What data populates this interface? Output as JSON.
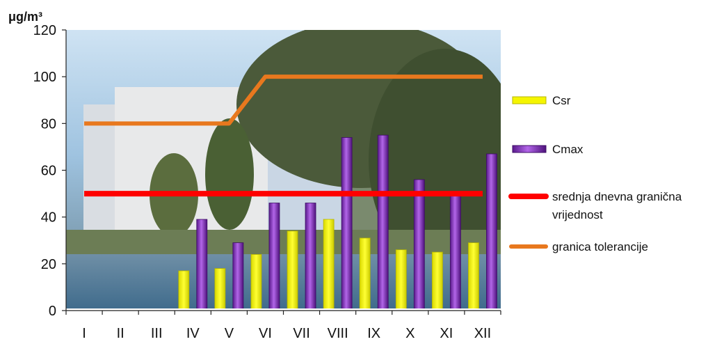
{
  "chart_data": {
    "type": "bar",
    "ylabel": "μg/m³",
    "ylim": [
      0,
      120
    ],
    "yticks": [
      0,
      20,
      40,
      60,
      80,
      100,
      120
    ],
    "grid": false,
    "legend_position": "right",
    "categories": [
      "I",
      "II",
      "III",
      "IV",
      "V",
      "VI",
      "VII",
      "VIII",
      "IX",
      "X",
      "XI",
      "XII"
    ],
    "series": [
      {
        "name": "Csr",
        "kind": "bar",
        "color": "#f5f500",
        "values": [
          null,
          null,
          null,
          17,
          18,
          24,
          34,
          39,
          31,
          26,
          25,
          29
        ]
      },
      {
        "name": "Cmax",
        "kind": "bar",
        "color": "#8a2fc2",
        "values": [
          null,
          null,
          null,
          39,
          29,
          46,
          46,
          74,
          75,
          56,
          50,
          67
        ]
      },
      {
        "name": "srednja dnevna granična vrijednost",
        "kind": "line",
        "color": "#ff0000",
        "values": [
          50,
          50,
          50,
          50,
          50,
          50,
          50,
          50,
          50,
          50,
          50,
          50
        ]
      },
      {
        "name": "granica tolerancije",
        "kind": "line",
        "color": "#e8781e",
        "values": [
          80,
          80,
          80,
          80,
          80,
          100,
          100,
          100,
          100,
          100,
          100,
          100
        ]
      }
    ]
  }
}
